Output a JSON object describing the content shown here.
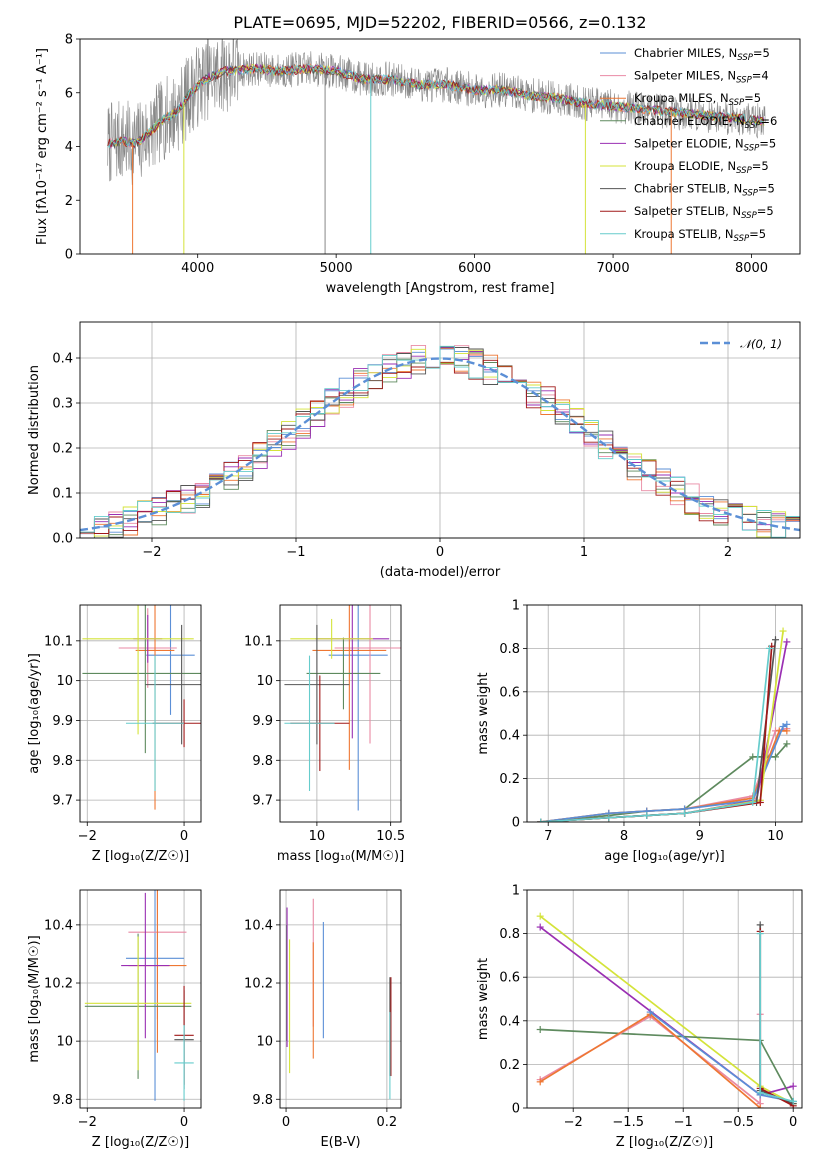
{
  "figure": {
    "title": "PLATE=0695, MJD=52202, FIBERID=0566, z=0.132"
  },
  "chart_data": [
    {
      "id": "spectrum",
      "type": "line",
      "xlabel": "wavelength [Angstrom, rest frame]",
      "ylabel": "Flux [fλ10⁻¹⁷ erg cm⁻² s⁻¹ A⁻¹]",
      "xlim": [
        3150,
        8350
      ],
      "ylim": [
        0,
        8
      ],
      "xticks": [
        "4000",
        "5000",
        "6000",
        "7000",
        "8000"
      ],
      "yticks": [
        "0",
        "2",
        "4",
        "6",
        "8"
      ],
      "legend": "upper right",
      "data_profile": {
        "x": [
          3350,
          3450,
          3550,
          3650,
          3750,
          3850,
          3950,
          4050,
          4200,
          4400,
          4600,
          4800,
          5000,
          5200,
          5400,
          5600,
          5800,
          6000,
          6200,
          6400,
          6600,
          6800,
          7000,
          7200,
          7400,
          7600,
          7800,
          8000,
          8100
        ],
        "y": [
          4.1,
          4.2,
          4.1,
          4.5,
          5.0,
          5.3,
          6.0,
          6.5,
          6.8,
          6.9,
          6.8,
          6.9,
          6.8,
          6.5,
          6.5,
          6.3,
          6.3,
          6.1,
          6.1,
          5.9,
          5.8,
          5.6,
          5.5,
          5.4,
          5.3,
          5.2,
          5.1,
          5.0,
          4.9
        ]
      },
      "observed_noise_amplitude": 1.2,
      "dropouts": [
        {
          "x": 3530,
          "color": "#ee7733"
        },
        {
          "x": 3900,
          "color": "#d4e33a"
        },
        {
          "x": 4920,
          "color": "#888888"
        },
        {
          "x": 5250,
          "color": "#66cccc"
        },
        {
          "x": 6800,
          "color": "#d4e33a"
        },
        {
          "x": 7420,
          "color": "#ee7733"
        }
      ],
      "series": [
        {
          "name": "Chabrier MILES, N",
          "sub": "SSP",
          "suffix": "=5",
          "color": "#5b8fd6"
        },
        {
          "name": "Salpeter MILES, N",
          "sub": "SSP",
          "suffix": "=4",
          "color": "#e98aa4"
        },
        {
          "name": "Kroupa MILES, N",
          "sub": "SSP",
          "suffix": "=5",
          "color": "#ee7733"
        },
        {
          "name": "Chabrier ELODIE, N",
          "sub": "SSP",
          "suffix": "=6",
          "color": "#5e8a5e"
        },
        {
          "name": "Salpeter ELODIE, N",
          "sub": "SSP",
          "suffix": "=5",
          "color": "#9a2fb3"
        },
        {
          "name": "Kroupa ELODIE, N",
          "sub": "SSP",
          "suffix": "=5",
          "color": "#d4e33a"
        },
        {
          "name": "Chabrier STELIB, N",
          "sub": "SSP",
          "suffix": "=5",
          "color": "#555555"
        },
        {
          "name": "Salpeter STELIB, N",
          "sub": "SSP",
          "suffix": "=5",
          "color": "#a01818"
        },
        {
          "name": "Kroupa STELIB, N",
          "sub": "SSP",
          "suffix": "=5",
          "color": "#66cccc"
        }
      ]
    },
    {
      "id": "residuals",
      "type": "histogram",
      "xlabel": "(data-model)/error",
      "ylabel": "Normed distribution",
      "xlim": [
        -2.5,
        2.5
      ],
      "ylim": [
        0,
        0.48
      ],
      "xticks": [
        -2,
        -1,
        0,
        1,
        2
      ],
      "yticks": [
        0.0,
        0.1,
        0.2,
        0.3,
        0.4
      ],
      "grid": true,
      "legend": "upper right",
      "reference": {
        "label": "𝒩(0, 1)",
        "color": "#5b8fd6"
      },
      "bin_width": 0.1,
      "histogram_colors": [
        "#5b8fd6",
        "#e98aa4",
        "#ee7733",
        "#5e8a5e",
        "#9a2fb3",
        "#d4e33a",
        "#555555",
        "#a01818",
        "#66cccc"
      ],
      "spread": 0.035
    },
    {
      "id": "age-vs-Z",
      "type": "errorbar",
      "xlabel": "Z [log₁₀(Z/Z☉)]",
      "ylabel": "age  [log₁₀(age/yr)]",
      "xlim": [
        -2.15,
        0.35
      ],
      "ylim": [
        9.645,
        10.19
      ],
      "xticks": [
        -2,
        0
      ],
      "yticks": [
        9.7,
        9.8,
        9.9,
        10.0,
        10.1
      ],
      "grid": true,
      "points": [
        {
          "x": -0.28,
          "y": 10.064,
          "xerr": 0.5,
          "yerr": 0.15,
          "color": "#5b8fd6"
        },
        {
          "x": -0.75,
          "y": 10.082,
          "xerr": 0.6,
          "yerr": 0.1,
          "color": "#e98aa4"
        },
        {
          "x": -0.6,
          "y": 10.076,
          "xerr": 0.4,
          "yerr": 0.4,
          "color": "#ee7733"
        },
        {
          "x": -0.8,
          "y": 10.018,
          "xerr": 1.3,
          "yerr": 0.2,
          "color": "#5e8a5e"
        },
        {
          "x": -0.75,
          "y": 10.105,
          "xerr": 0.3,
          "yerr": 0.06,
          "color": "#9a2fb3"
        },
        {
          "x": -0.95,
          "y": 10.105,
          "xerr": 1.15,
          "yerr": 0.24,
          "color": "#d4e33a"
        },
        {
          "x": -0.05,
          "y": 9.99,
          "xerr": 0.75,
          "yerr": 0.15,
          "color": "#555555"
        },
        {
          "x": 0.0,
          "y": 9.893,
          "xerr": 0.65,
          "yerr": 0.06,
          "color": "#a01818"
        },
        {
          "x": -0.6,
          "y": 9.893,
          "xerr": 0.6,
          "yerr": 0.17,
          "color": "#66cccc"
        }
      ]
    },
    {
      "id": "age-vs-mass",
      "type": "errorbar",
      "xlabel": "mass [log₁₀(M/M☉)]",
      "ylabel": "",
      "xlim": [
        9.75,
        10.57
      ],
      "ylim": [
        9.645,
        10.19
      ],
      "xticks": [
        10.0,
        10.5
      ],
      "yticks": [
        9.7,
        9.8,
        9.9,
        10.0,
        10.1
      ],
      "grid": true,
      "points": [
        {
          "x": 10.28,
          "y": 10.064,
          "xerr": 0.2,
          "yerr": 0.39,
          "color": "#5b8fd6"
        },
        {
          "x": 10.36,
          "y": 10.082,
          "xerr": 0.24,
          "yerr": 0.24,
          "color": "#e98aa4"
        },
        {
          "x": 10.22,
          "y": 10.076,
          "xerr": 0.25,
          "yerr": 0.3,
          "color": "#ee7733"
        },
        {
          "x": 10.18,
          "y": 10.018,
          "xerr": 0.25,
          "yerr": 0.09,
          "color": "#5e8a5e"
        },
        {
          "x": 10.24,
          "y": 10.105,
          "xerr": 0.25,
          "yerr": 0.25,
          "color": "#9a2fb3"
        },
        {
          "x": 10.1,
          "y": 10.105,
          "xerr": 0.28,
          "yerr": 0.05,
          "color": "#d4e33a"
        },
        {
          "x": 10.0,
          "y": 9.99,
          "xerr": 0.22,
          "yerr": 0.15,
          "color": "#555555"
        },
        {
          "x": 10.02,
          "y": 9.893,
          "xerr": 0.2,
          "yerr": 0.12,
          "color": "#a01818"
        },
        {
          "x": 9.95,
          "y": 9.893,
          "xerr": 0.17,
          "yerr": 0.17,
          "color": "#66cccc"
        }
      ]
    },
    {
      "id": "weight-vs-age",
      "type": "line",
      "xlabel": "age  [log₁₀(age/yr)]",
      "ylabel": "mass weight",
      "xlim": [
        6.72,
        10.35
      ],
      "ylim": [
        0,
        1.0
      ],
      "xticks": [
        7,
        8,
        9,
        10
      ],
      "yticks": [
        0.0,
        0.2,
        0.4,
        0.6,
        0.8,
        1.0
      ],
      "grid": true,
      "series": [
        {
          "color": "#5e8a5e",
          "x": [
            6.9,
            7.8,
            8.3,
            8.8,
            9.7,
            9.9,
            10.0,
            10.15
          ],
          "y": [
            0.0,
            0.03,
            0.05,
            0.06,
            0.3,
            0.3,
            0.3,
            0.36
          ]
        },
        {
          "color": "#e98aa4",
          "x": [
            6.9,
            7.8,
            8.3,
            8.8,
            9.7,
            10.0,
            10.15
          ],
          "y": [
            0.0,
            0.04,
            0.05,
            0.06,
            0.12,
            0.42,
            0.43
          ]
        },
        {
          "color": "#ee7733",
          "x": [
            6.9,
            7.8,
            8.3,
            8.8,
            9.7,
            10.05,
            10.15
          ],
          "y": [
            0.0,
            0.04,
            0.05,
            0.06,
            0.11,
            0.42,
            0.42
          ]
        },
        {
          "color": "#5b8fd6",
          "x": [
            6.9,
            7.8,
            8.3,
            8.8,
            9.7,
            10.1,
            10.15
          ],
          "y": [
            0.0,
            0.04,
            0.05,
            0.06,
            0.1,
            0.44,
            0.45
          ]
        },
        {
          "color": "#9a2fb3",
          "x": [
            6.9,
            7.8,
            8.3,
            8.8,
            9.75,
            10.15
          ],
          "y": [
            0.0,
            0.02,
            0.03,
            0.04,
            0.1,
            0.83
          ]
        },
        {
          "color": "#d4e33a",
          "x": [
            6.9,
            7.8,
            8.3,
            8.8,
            9.8,
            10.1
          ],
          "y": [
            0.0,
            0.02,
            0.03,
            0.04,
            0.1,
            0.88
          ]
        },
        {
          "color": "#555555",
          "x": [
            6.9,
            7.8,
            8.3,
            8.8,
            9.75,
            10.0
          ],
          "y": [
            0.0,
            0.02,
            0.03,
            0.04,
            0.09,
            0.84
          ]
        },
        {
          "color": "#a01818",
          "x": [
            6.9,
            7.8,
            8.3,
            8.8,
            9.8,
            9.95
          ],
          "y": [
            0.0,
            0.02,
            0.03,
            0.04,
            0.09,
            0.81
          ]
        },
        {
          "color": "#66cccc",
          "x": [
            6.9,
            7.8,
            8.3,
            8.8,
            9.7,
            9.92
          ],
          "y": [
            0.0,
            0.02,
            0.03,
            0.04,
            0.09,
            0.8
          ]
        }
      ]
    },
    {
      "id": "mass-vs-Z",
      "type": "errorbar",
      "xlabel": "Z [log₁₀(Z/Z☉)]",
      "ylabel": "mass [log₁₀(M/M☉)]",
      "xlim": [
        -2.15,
        0.35
      ],
      "ylim": [
        9.77,
        10.52
      ],
      "xticks": [
        -2,
        0
      ],
      "yticks": [
        9.8,
        10.0,
        10.2,
        10.4
      ],
      "grid": true,
      "points": [
        {
          "x": -0.6,
          "y": 10.285,
          "xerr": 0.6,
          "yerr": 0.49,
          "color": "#5b8fd6"
        },
        {
          "x": -0.55,
          "y": 10.375,
          "xerr": 0.6,
          "yerr": 0.3,
          "color": "#e98aa4"
        },
        {
          "x": -0.55,
          "y": 10.26,
          "xerr": 0.6,
          "yerr": 0.3,
          "color": "#ee7733"
        },
        {
          "x": -0.95,
          "y": 10.12,
          "xerr": 1.1,
          "yerr": 0.25,
          "color": "#5e8a5e"
        },
        {
          "x": -0.8,
          "y": 10.26,
          "xerr": 0.5,
          "yerr": 0.25,
          "color": "#9a2fb3"
        },
        {
          "x": -0.95,
          "y": 10.13,
          "xerr": 1.1,
          "yerr": 0.23,
          "color": "#d4e33a"
        },
        {
          "x": 0.0,
          "y": 10.005,
          "xerr": 0.2,
          "yerr": 0.17,
          "color": "#555555"
        },
        {
          "x": 0.0,
          "y": 10.02,
          "xerr": 0.2,
          "yerr": 0.17,
          "color": "#a01818"
        },
        {
          "x": 0.0,
          "y": 9.925,
          "xerr": 0.2,
          "yerr": 0.13,
          "color": "#66cccc"
        }
      ]
    },
    {
      "id": "mass-vs-ebv",
      "type": "errorbar",
      "xlabel": "E(B-V)",
      "ylabel": "",
      "xlim": [
        -0.012,
        0.228
      ],
      "ylim": [
        9.77,
        10.52
      ],
      "xticks": [
        0.0,
        0.2
      ],
      "yticks": [
        9.8,
        10.0,
        10.2,
        10.4
      ],
      "grid": true,
      "points": [
        {
          "x": 0.074,
          "y": 10.21,
          "xerr": 0,
          "yerr": 0.2,
          "color": "#5b8fd6"
        },
        {
          "x": 0.054,
          "y": 10.27,
          "xerr": 0,
          "yerr": 0.22,
          "color": "#e98aa4"
        },
        {
          "x": 0.054,
          "y": 10.14,
          "xerr": 0,
          "yerr": 0.2,
          "color": "#ee7733"
        },
        {
          "x": 0.001,
          "y": 10.2,
          "xerr": 0,
          "yerr": 0.2,
          "color": "#5e8a5e"
        },
        {
          "x": 0.002,
          "y": 10.22,
          "xerr": 0,
          "yerr": 0.24,
          "color": "#9a2fb3"
        },
        {
          "x": 0.007,
          "y": 10.12,
          "xerr": 0,
          "yerr": 0.23,
          "color": "#d4e33a"
        },
        {
          "x": 0.206,
          "y": 10.05,
          "xerr": 0,
          "yerr": 0.17,
          "color": "#555555"
        },
        {
          "x": 0.208,
          "y": 10.05,
          "xerr": 0,
          "yerr": 0.17,
          "color": "#a01818"
        },
        {
          "x": 0.206,
          "y": 9.95,
          "xerr": 0,
          "yerr": 0.15,
          "color": "#66cccc"
        }
      ]
    },
    {
      "id": "weight-vs-Z",
      "type": "line",
      "xlabel": "Z [log₁₀(Z/Z☉)]",
      "ylabel": "mass weight",
      "xlim": [
        -2.42,
        0.08
      ],
      "ylim": [
        0,
        1.0
      ],
      "xticks": [
        -2.0,
        -1.5,
        -1.0,
        -0.5,
        0.0
      ],
      "yticks": [
        0.0,
        0.2,
        0.4,
        0.6,
        0.8,
        1.0
      ],
      "grid": true,
      "series": [
        {
          "color": "#d4e33a",
          "x": [
            -2.3,
            -0.3,
            0.0
          ],
          "y": [
            0.88,
            0.1,
            0.02
          ]
        },
        {
          "color": "#9a2fb3",
          "x": [
            -2.3,
            -0.3,
            0.0
          ],
          "y": [
            0.83,
            0.06,
            0.1
          ]
        },
        {
          "color": "#5e8a5e",
          "x": [
            -2.3,
            -0.3,
            0.0
          ],
          "y": [
            0.36,
            0.31,
            0.03
          ]
        },
        {
          "color": "#e98aa4",
          "x": [
            -2.3,
            -1.3,
            -0.3,
            -0.3
          ],
          "y": [
            0.13,
            0.42,
            0.02,
            0.43
          ]
        },
        {
          "color": "#ee7733",
          "x": [
            -2.3,
            -1.3,
            -0.3
          ],
          "y": [
            0.12,
            0.43,
            0.0
          ]
        },
        {
          "color": "#5b8fd6",
          "x": [
            -1.3,
            -0.3,
            0.0
          ],
          "y": [
            0.44,
            0.06,
            0.03
          ]
        },
        {
          "color": "#555555",
          "x": [
            -0.3,
            -0.3,
            0.0
          ],
          "y": [
            0.84,
            0.08,
            0.02
          ]
        },
        {
          "color": "#a01818",
          "x": [
            -0.3,
            -0.3,
            0.0
          ],
          "y": [
            0.81,
            0.09,
            0.01
          ]
        },
        {
          "color": "#66cccc",
          "x": [
            -0.3,
            -0.3,
            0.0
          ],
          "y": [
            0.8,
            0.07,
            0.03
          ]
        }
      ]
    }
  ]
}
